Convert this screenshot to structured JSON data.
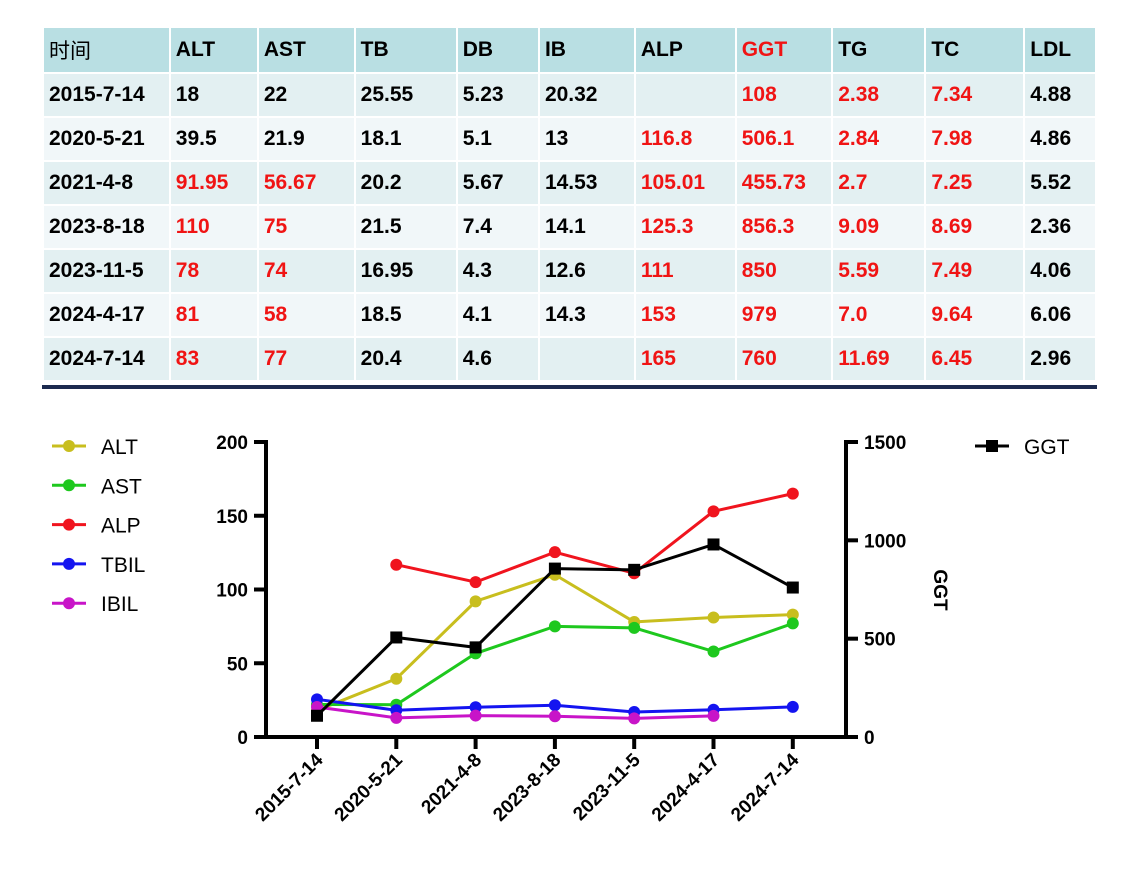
{
  "table": {
    "headers": [
      "时间",
      "ALT",
      "AST",
      "TB",
      "DB",
      "IB",
      "ALP",
      "GGT",
      "TG",
      "TC",
      "LDL"
    ],
    "header_red": [
      false,
      false,
      false,
      false,
      false,
      false,
      false,
      true,
      false,
      false,
      false
    ],
    "rows": [
      {
        "cells": [
          "2015-7-14",
          "18",
          "22",
          "25.55",
          "5.23",
          "20.32",
          "",
          "108",
          "2.38",
          "7.34",
          "4.88"
        ],
        "red": [
          0,
          0,
          0,
          0,
          0,
          0,
          0,
          1,
          1,
          1,
          0
        ]
      },
      {
        "cells": [
          "2020-5-21",
          "39.5",
          "21.9",
          "18.1",
          "5.1",
          "13",
          "116.8",
          "506.1",
          "2.84",
          "7.98",
          "4.86"
        ],
        "red": [
          0,
          0,
          0,
          0,
          0,
          0,
          1,
          1,
          1,
          1,
          0
        ]
      },
      {
        "cells": [
          "2021-4-8",
          "91.95",
          "56.67",
          "20.2",
          "5.67",
          "14.53",
          "105.01",
          "455.73",
          "2.7",
          "7.25",
          "5.52"
        ],
        "red": [
          0,
          1,
          1,
          0,
          0,
          0,
          1,
          1,
          1,
          1,
          0
        ]
      },
      {
        "cells": [
          "2023-8-18",
          "110",
          "75",
          "21.5",
          "7.4",
          "14.1",
          "125.3",
          "856.3",
          "9.09",
          "8.69",
          "2.36"
        ],
        "red": [
          0,
          1,
          1,
          0,
          0,
          0,
          1,
          1,
          1,
          1,
          0
        ]
      },
      {
        "cells": [
          "2023-11-5",
          "78",
          "74",
          "16.95",
          "4.3",
          "12.6",
          "111",
          "850",
          "5.59",
          "7.49",
          "4.06"
        ],
        "red": [
          0,
          1,
          1,
          0,
          0,
          0,
          1,
          1,
          1,
          1,
          0
        ]
      },
      {
        "cells": [
          "2024-4-17",
          "81",
          "58",
          "18.5",
          "4.1",
          "14.3",
          "153",
          "979",
          "7.0",
          "9.64",
          "6.06"
        ],
        "red": [
          0,
          1,
          1,
          0,
          0,
          0,
          1,
          1,
          1,
          1,
          0
        ]
      },
      {
        "cells": [
          "2024-7-14",
          "83",
          "77",
          "20.4",
          "4.6",
          "",
          "165",
          "760",
          "11.69",
          "6.45",
          "2.96"
        ],
        "red": [
          0,
          1,
          1,
          0,
          0,
          0,
          1,
          1,
          1,
          1,
          0
        ]
      }
    ]
  },
  "chart_data": {
    "type": "line",
    "categories": [
      "2015-7-14",
      "2020-5-21",
      "2021-4-8",
      "2023-8-18",
      "2023-11-5",
      "2024-4-17",
      "2024-7-14"
    ],
    "left_axis": {
      "ylim": [
        0,
        200
      ],
      "ticks": [
        0,
        50,
        100,
        150,
        200
      ]
    },
    "right_axis": {
      "ylabel": "GGT",
      "ylim": [
        0,
        1500
      ],
      "ticks": [
        0,
        500,
        1000,
        1500
      ]
    },
    "series": [
      {
        "name": "ALT",
        "axis": "left",
        "color": "#c8be1e",
        "marker": "circle",
        "values": [
          18,
          39.5,
          91.95,
          110,
          78,
          81,
          83
        ]
      },
      {
        "name": "AST",
        "axis": "left",
        "color": "#1ec81e",
        "marker": "circle",
        "values": [
          22,
          21.9,
          56.67,
          75,
          74,
          58,
          77
        ]
      },
      {
        "name": "ALP",
        "axis": "left",
        "color": "#f0141e",
        "marker": "circle",
        "values": [
          null,
          116.8,
          105.01,
          125.3,
          111,
          153,
          165
        ]
      },
      {
        "name": "TBIL",
        "axis": "left",
        "color": "#1414f0",
        "marker": "circle",
        "values": [
          25.55,
          18.1,
          20.2,
          21.5,
          16.95,
          18.5,
          20.4
        ]
      },
      {
        "name": "IBIL",
        "axis": "left",
        "color": "#c814c8",
        "marker": "circle",
        "values": [
          20.32,
          13,
          14.53,
          14.1,
          12.6,
          14.3,
          null
        ]
      },
      {
        "name": "GGT",
        "axis": "right",
        "color": "#000000",
        "marker": "square",
        "values": [
          108,
          506.1,
          455.73,
          856.3,
          850,
          979,
          760
        ]
      }
    ]
  }
}
